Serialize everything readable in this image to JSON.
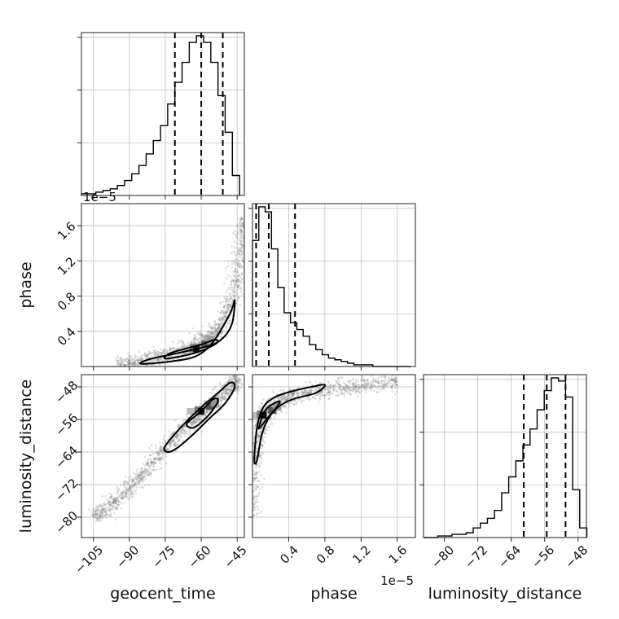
{
  "chart_data": {
    "type": "corner",
    "parameters": [
      "geocent_time",
      "phase",
      "luminosity_distance"
    ],
    "offset_labels": {
      "geocent_time_vs_phase_y": "1e−5",
      "phase_x": "1e−5"
    },
    "histograms": [
      {
        "name": "geocent_time",
        "range": [
          -110,
          -42
        ],
        "bin_edges": [
          -110,
          -107,
          -104,
          -101,
          -98,
          -95,
          -92,
          -89,
          -86,
          -83,
          -80,
          -77,
          -74,
          -71,
          -68,
          -65,
          -62,
          -59,
          -56,
          -53,
          -50,
          -47,
          -44
        ],
        "counts": [
          1,
          1,
          2,
          3,
          4,
          6,
          9,
          13,
          18,
          25,
          33,
          42,
          55,
          68,
          80,
          92,
          96,
          92,
          80,
          60,
          38,
          12
        ],
        "quantiles": [
          -71,
          -60,
          -51
        ]
      },
      {
        "name": "phase",
        "range": [
          0,
          1.8
        ],
        "bin_edges": [
          0,
          0.07,
          0.14,
          0.21,
          0.28,
          0.35,
          0.42,
          0.49,
          0.56,
          0.63,
          0.7,
          0.77,
          0.84,
          0.91,
          0.98,
          1.05,
          1.12,
          1.19,
          1.26,
          1.33,
          1.4,
          1.47,
          1.54,
          1.61,
          1.68,
          1.75
        ],
        "counts": [
          75,
          95,
          92,
          70,
          47,
          32,
          26,
          22,
          18,
          13,
          10,
          7,
          5,
          4,
          3,
          2,
          1,
          1,
          1,
          0,
          0,
          0,
          0,
          0,
          0
        ],
        "quantiles": [
          0.04,
          0.18,
          0.47
        ]
      },
      {
        "name": "luminosity_distance",
        "range": [
          -85,
          -46
        ],
        "bin_edges": [
          -85,
          -83.3,
          -81.6,
          -79.9,
          -78.2,
          -76.5,
          -74.8,
          -73.1,
          -71.4,
          -69.7,
          -68,
          -66.3,
          -64.6,
          -62.9,
          -61.2,
          -59.5,
          -57.8,
          -56.1,
          -54.4,
          -52.7,
          -51,
          -49.3,
          -47.6,
          -45.9
        ],
        "counts": [
          0,
          0,
          1,
          1,
          2,
          2,
          3,
          6,
          9,
          12,
          17,
          28,
          38,
          48,
          58,
          68,
          80,
          92,
          100,
          98,
          88,
          30,
          6
        ],
        "quantiles": [
          -61,
          -55.5,
          -51
        ]
      }
    ],
    "panels": [
      {
        "name": "geocent_time_vs_phase",
        "x_param": "geocent_time",
        "y_param": "phase",
        "xlim": [
          -110,
          -42
        ],
        "ylim": [
          0,
          1.85
        ],
        "ridge": [
          [
            -95,
            0.02
          ],
          [
            -85,
            0.05
          ],
          [
            -75,
            0.12
          ],
          [
            -65,
            0.2
          ],
          [
            -58,
            0.3
          ],
          [
            -52,
            0.45
          ],
          [
            -47,
            0.75
          ],
          [
            -44,
            1.25
          ],
          [
            -42,
            1.7
          ]
        ],
        "density_peak": [
          -62,
          0.2
        ],
        "contours": [
          [
            [
              -85,
              0.03
            ],
            [
              -72,
              0.06
            ],
            [
              -62,
              0.12
            ],
            [
              -55,
              0.28
            ],
            [
              -48,
              0.6
            ],
            [
              -46,
              0.75
            ],
            [
              -47,
              0.5
            ],
            [
              -50,
              0.35
            ],
            [
              -55,
              0.25
            ],
            [
              -62,
              0.2
            ],
            [
              -72,
              0.14
            ],
            [
              -82,
              0.08
            ]
          ],
          [
            [
              -75,
              0.09
            ],
            [
              -66,
              0.13
            ],
            [
              -58,
              0.2
            ],
            [
              -53,
              0.28
            ],
            [
              -55,
              0.3
            ],
            [
              -60,
              0.25
            ],
            [
              -67,
              0.2
            ],
            [
              -73,
              0.15
            ]
          ]
        ]
      },
      {
        "name": "geocent_time_vs_luminosity_distance",
        "x_param": "geocent_time",
        "y_param": "luminosity_distance",
        "xlim": [
          -110,
          -42
        ],
        "ylim": [
          -85,
          -45
        ],
        "ridge": [
          [
            -105,
            -80
          ],
          [
            -95,
            -76
          ],
          [
            -85,
            -70
          ],
          [
            -75,
            -63
          ],
          [
            -65,
            -57
          ],
          [
            -57,
            -53
          ],
          [
            -50,
            -49
          ],
          [
            -44,
            -46
          ]
        ],
        "density_peak": [
          -60,
          -54
        ],
        "contours": [
          [
            [
              -75,
              -62.5
            ],
            [
              -67,
              -57
            ],
            [
              -60,
              -53
            ],
            [
              -53,
              -49.5
            ],
            [
              -48,
              -47
            ],
            [
              -46,
              -48
            ],
            [
              -50,
              -52
            ],
            [
              -57,
              -56
            ],
            [
              -64,
              -60
            ],
            [
              -70,
              -63
            ],
            [
              -74,
              -64
            ]
          ],
          [
            [
              -66,
              -57
            ],
            [
              -60,
              -54
            ],
            [
              -55,
              -51
            ],
            [
              -53,
              -51.5
            ],
            [
              -57,
              -55
            ],
            [
              -63,
              -58
            ]
          ]
        ]
      },
      {
        "name": "phase_vs_luminosity_distance",
        "x_param": "phase",
        "y_param": "luminosity_distance",
        "xlim": [
          0,
          1.8
        ],
        "ylim": [
          -85,
          -45
        ],
        "ridge": [
          [
            0.0,
            -80
          ],
          [
            0.02,
            -67
          ],
          [
            0.05,
            -60
          ],
          [
            0.12,
            -55
          ],
          [
            0.25,
            -52
          ],
          [
            0.45,
            -50
          ],
          [
            0.7,
            -49
          ],
          [
            1.0,
            -48
          ],
          [
            1.3,
            -47.5
          ],
          [
            1.6,
            -47
          ]
        ],
        "density_peak": [
          0.12,
          -55
        ],
        "contours": [
          [
            [
              0.02,
              -66
            ],
            [
              0.05,
              -58
            ],
            [
              0.12,
              -53
            ],
            [
              0.25,
              -50.5
            ],
            [
              0.45,
              -49
            ],
            [
              0.65,
              -48
            ],
            [
              0.8,
              -47.5
            ],
            [
              0.7,
              -49.5
            ],
            [
              0.45,
              -51
            ],
            [
              0.28,
              -53
            ],
            [
              0.17,
              -56
            ],
            [
              0.1,
              -60
            ],
            [
              0.05,
              -66
            ]
          ],
          [
            [
              0.07,
              -58
            ],
            [
              0.15,
              -53.5
            ],
            [
              0.3,
              -51.5
            ],
            [
              0.25,
              -53.5
            ],
            [
              0.17,
              -55.5
            ],
            [
              0.1,
              -57.5
            ]
          ]
        ]
      }
    ]
  },
  "axes": {
    "geocent_time": {
      "label": "geocent_time",
      "ticks": [
        -105,
        -90,
        -75,
        -60,
        -45
      ],
      "tick_labels": [
        "−105",
        "−90",
        "−75",
        "−60",
        "−45"
      ]
    },
    "phase_x": {
      "label": "phase",
      "ticks": [
        0.4,
        0.8,
        1.2,
        1.6
      ],
      "tick_labels": [
        "0.4",
        "0.8",
        "1.2",
        "1.6"
      ]
    },
    "phase_y": {
      "label": "phase",
      "ticks": [
        0.4,
        0.8,
        1.2,
        1.6
      ],
      "tick_labels": [
        "0.4",
        "0.8",
        "1.2",
        "1.6"
      ]
    },
    "luminosity_distance_x": {
      "label": "luminosity_distance",
      "ticks": [
        -80,
        -72,
        -64,
        -56,
        -48
      ],
      "tick_labels": [
        "−80",
        "−72",
        "−64",
        "−56",
        "−48"
      ]
    },
    "luminosity_distance_y": {
      "label": "luminosity_distance",
      "ticks": [
        -80,
        -72,
        -64,
        -56,
        -48
      ],
      "tick_labels": [
        "−80",
        "−72",
        "−64",
        "−56",
        "−48"
      ]
    }
  }
}
